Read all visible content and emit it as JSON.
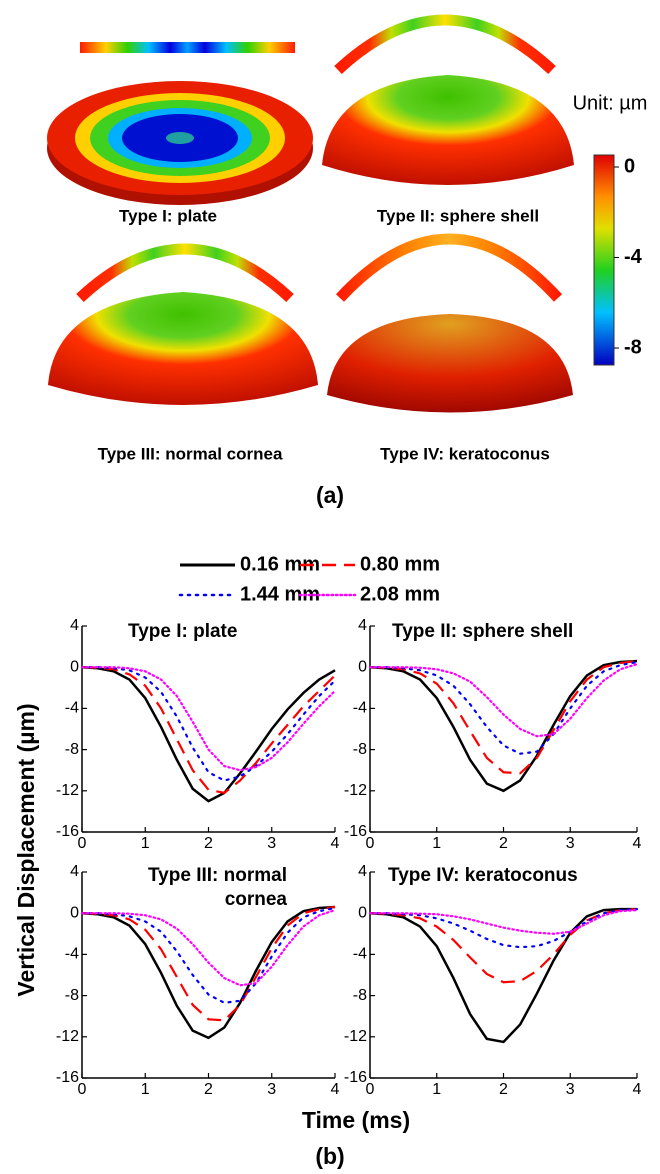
{
  "panel_a": {
    "label": "(a)",
    "samples": [
      "Type I: plate",
      "Type II: sphere shell",
      "Type III: normal cornea",
      "Type IV: keratoconus"
    ],
    "colorbar": {
      "title": "Unit: µm",
      "lim": [
        -8.75,
        0.53
      ],
      "ticks": [
        -8,
        -4,
        0
      ]
    }
  },
  "panel_b": {
    "label": "(b)",
    "ylabel": "Vertical Displacement (µm)",
    "xlabel": "Time (ms)"
  },
  "chart_data": [
    {
      "type": "line",
      "title": "Type I: plate",
      "x": [
        0,
        0.25,
        0.5,
        0.75,
        1,
        1.25,
        1.5,
        1.75,
        2,
        2.25,
        2.5,
        2.75,
        3,
        3.25,
        3.5,
        3.75,
        4
      ],
      "xlim": [
        0,
        4
      ],
      "xticks": [
        0,
        1,
        2,
        3,
        4
      ],
      "ylim": [
        -16,
        4
      ],
      "yticks": [
        -16,
        -12,
        -8,
        -4,
        0,
        4
      ],
      "series": [
        {
          "name": "0.16 mm",
          "color": "#000000",
          "dash": "solid",
          "values": [
            0,
            -0.1,
            -0.4,
            -1.2,
            -3,
            -5.8,
            -9,
            -11.8,
            -13,
            -12.2,
            -10.3,
            -8.2,
            -6,
            -4.1,
            -2.5,
            -1.2,
            -0.3
          ]
        },
        {
          "name": "0.80 mm",
          "color": "#ff0000",
          "dash": "dashed",
          "values": [
            0,
            -0.05,
            -0.2,
            -0.7,
            -1.8,
            -4,
            -7,
            -10,
            -11.9,
            -12.2,
            -11,
            -9.3,
            -7.4,
            -5.6,
            -3.8,
            -2.3,
            -0.8
          ]
        },
        {
          "name": "1.44 mm",
          "color": "#0000ff",
          "dash": "dotted",
          "values": [
            0,
            0,
            -0.1,
            -0.3,
            -1,
            -2.4,
            -4.8,
            -7.8,
            -10.2,
            -11,
            -10.6,
            -9.6,
            -8.2,
            -6.5,
            -4.6,
            -2.8,
            -1.3
          ]
        },
        {
          "name": "2.08 mm",
          "color": "#ff00ff",
          "dash": "dense-dotted",
          "values": [
            0,
            0,
            0,
            -0.1,
            -0.4,
            -1.2,
            -2.8,
            -5.3,
            -8,
            -9.6,
            -10,
            -9.7,
            -8.8,
            -7.3,
            -5.5,
            -3.8,
            -2.3
          ]
        }
      ]
    },
    {
      "type": "line",
      "title": "Type II: sphere shell",
      "x": [
        0,
        0.25,
        0.5,
        0.75,
        1,
        1.25,
        1.5,
        1.75,
        2,
        2.25,
        2.5,
        2.75,
        3,
        3.25,
        3.5,
        3.75,
        4
      ],
      "xlim": [
        0,
        4
      ],
      "xticks": [
        0,
        1,
        2,
        3,
        4
      ],
      "ylim": [
        -16,
        4
      ],
      "yticks": [
        -16,
        -12,
        -8,
        -4,
        0,
        4
      ],
      "series": [
        {
          "name": "0.16 mm",
          "color": "#000000",
          "dash": "solid",
          "values": [
            0,
            -0.1,
            -0.4,
            -1.2,
            -3,
            -5.8,
            -9,
            -11.3,
            -12,
            -11,
            -8.6,
            -5.6,
            -2.8,
            -0.8,
            0.2,
            0.5,
            0.6
          ]
        },
        {
          "name": "0.80 mm",
          "color": "#ff0000",
          "dash": "dashed",
          "values": [
            0,
            -0.05,
            -0.2,
            -0.6,
            -1.6,
            -3.5,
            -6.2,
            -8.8,
            -10.2,
            -10.3,
            -8.8,
            -6.1,
            -3.3,
            -1.2,
            0,
            0.4,
            0.6
          ]
        },
        {
          "name": "1.44 mm",
          "color": "#0000ff",
          "dash": "dotted",
          "values": [
            0,
            0,
            -0.1,
            -0.3,
            -0.8,
            -1.8,
            -3.6,
            -5.8,
            -7.6,
            -8.4,
            -8.2,
            -6.5,
            -4,
            -1.8,
            -0.4,
            0.2,
            0.5
          ]
        },
        {
          "name": "2.08 mm",
          "color": "#ff00ff",
          "dash": "dense-dotted",
          "values": [
            0,
            0,
            0,
            -0.05,
            -0.2,
            -0.6,
            -1.4,
            -2.9,
            -4.6,
            -6,
            -6.7,
            -6.5,
            -5,
            -3,
            -1.3,
            -0.2,
            0.3
          ]
        }
      ]
    },
    {
      "type": "line",
      "title": "Type III: normal cornea",
      "x": [
        0,
        0.25,
        0.5,
        0.75,
        1,
        1.25,
        1.5,
        1.75,
        2,
        2.25,
        2.5,
        2.75,
        3,
        3.25,
        3.5,
        3.75,
        4
      ],
      "xlim": [
        0,
        4
      ],
      "xticks": [
        0,
        1,
        2,
        3,
        4
      ],
      "ylim": [
        -16,
        4
      ],
      "yticks": [
        -16,
        -12,
        -8,
        -4,
        0,
        4
      ],
      "series": [
        {
          "name": "0.16 mm",
          "color": "#000000",
          "dash": "solid",
          "values": [
            0,
            -0.1,
            -0.4,
            -1.2,
            -3,
            -5.8,
            -9,
            -11.4,
            -12.1,
            -11.1,
            -8.7,
            -5.6,
            -2.8,
            -0.8,
            0.2,
            0.5,
            0.6
          ]
        },
        {
          "name": "0.80 mm",
          "color": "#ff0000",
          "dash": "dashed",
          "values": [
            0,
            -0.05,
            -0.2,
            -0.6,
            -1.6,
            -3.5,
            -6.2,
            -8.9,
            -10.3,
            -10.4,
            -8.9,
            -6.2,
            -3.4,
            -1.2,
            0,
            0.4,
            0.6
          ]
        },
        {
          "name": "1.44 mm",
          "color": "#0000ff",
          "dash": "dotted",
          "values": [
            0,
            0,
            -0.1,
            -0.3,
            -0.8,
            -1.8,
            -3.7,
            -6,
            -7.9,
            -8.7,
            -8.5,
            -6.8,
            -4.2,
            -1.9,
            -0.4,
            0.2,
            0.5
          ]
        },
        {
          "name": "2.08 mm",
          "color": "#ff00ff",
          "dash": "dense-dotted",
          "values": [
            0,
            0,
            0,
            -0.05,
            -0.2,
            -0.6,
            -1.5,
            -3,
            -4.8,
            -6.3,
            -7,
            -6.8,
            -5.2,
            -3.1,
            -1.3,
            -0.2,
            0.3
          ]
        }
      ]
    },
    {
      "type": "line",
      "title": "Type IV: keratoconus",
      "x": [
        0,
        0.25,
        0.5,
        0.75,
        1,
        1.25,
        1.5,
        1.75,
        2,
        2.25,
        2.5,
        2.75,
        3,
        3.25,
        3.5,
        3.75,
        4
      ],
      "xlim": [
        0,
        4
      ],
      "xticks": [
        0,
        1,
        2,
        3,
        4
      ],
      "ylim": [
        -16,
        4
      ],
      "yticks": [
        -16,
        -12,
        -8,
        -4,
        0,
        4
      ],
      "series": [
        {
          "name": "0.16 mm",
          "color": "#000000",
          "dash": "solid",
          "values": [
            0,
            -0.1,
            -0.4,
            -1.3,
            -3.2,
            -6.3,
            -9.8,
            -12.2,
            -12.5,
            -10.8,
            -7.8,
            -4.6,
            -1.9,
            -0.3,
            0.3,
            0.4,
            0.4
          ]
        },
        {
          "name": "0.80 mm",
          "color": "#ff0000",
          "dash": "dashed",
          "values": [
            0,
            -0.05,
            -0.2,
            -0.5,
            -1.3,
            -2.6,
            -4.3,
            -5.9,
            -6.7,
            -6.6,
            -5.6,
            -4,
            -2.1,
            -0.7,
            0,
            0.3,
            0.4
          ]
        },
        {
          "name": "1.44 mm",
          "color": "#0000ff",
          "dash": "dotted",
          "values": [
            0,
            0,
            -0.1,
            -0.2,
            -0.5,
            -1,
            -1.7,
            -2.5,
            -3.1,
            -3.3,
            -3.2,
            -2.7,
            -1.8,
            -0.8,
            0,
            0.3,
            0.4
          ]
        },
        {
          "name": "2.08 mm",
          "color": "#ff00ff",
          "dash": "dense-dotted",
          "values": [
            0,
            0,
            0,
            -0.05,
            -0.1,
            -0.3,
            -0.6,
            -1,
            -1.4,
            -1.7,
            -1.9,
            -2,
            -1.8,
            -1,
            -0.2,
            0.2,
            0.3
          ]
        }
      ]
    }
  ]
}
